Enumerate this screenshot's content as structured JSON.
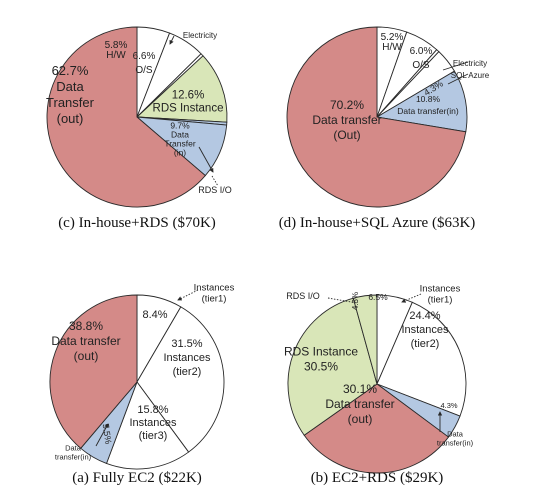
{
  "colors": {
    "pink": "#d48a88",
    "green": "#d9e6b8",
    "blue": "#b4c8e2",
    "white": "#ffffff",
    "stroke": "#2a2a2a"
  },
  "chart_data": [
    {
      "type": "pie",
      "caption": "(c) In-house+RDS ($70K)",
      "slices": [
        {
          "label": "H/W",
          "value": 5.8,
          "color": "white"
        },
        {
          "label": "O/S",
          "value": 6.6,
          "color": "white"
        },
        {
          "label": "Electricity",
          "value": 0.5,
          "color": "white"
        },
        {
          "label": "RDS Instance",
          "value": 12.6,
          "color": "green"
        },
        {
          "label": "RDS I/O",
          "value": 0.5,
          "color": "blue"
        },
        {
          "label": "Data Transfer (in)",
          "value": 9.7,
          "color": "blue"
        },
        {
          "label": "Data Transfer (out)",
          "value": 62.7,
          "color": "pink"
        }
      ],
      "labels": [
        {
          "id": "c-transfer-out",
          "lines": [
            "62.7%",
            "Data",
            "Transfer",
            "(out)"
          ]
        },
        {
          "id": "c-hw",
          "lines": [
            "5.8%",
            "H/W"
          ]
        },
        {
          "id": "c-os",
          "lines": [
            "6.6%",
            "O/S"
          ]
        },
        {
          "id": "c-electricity",
          "lines": [
            "Electricity"
          ]
        },
        {
          "id": "c-rds-instance",
          "lines": [
            "12.6%",
            "RDS Instance"
          ]
        },
        {
          "id": "c-transfer-in",
          "lines": [
            "9.7%",
            "Data",
            "Transfer",
            "(in)"
          ]
        },
        {
          "id": "c-rds-io",
          "lines": [
            "RDS I/O"
          ]
        }
      ]
    },
    {
      "type": "pie",
      "caption": "(d) In-house+SQL Azure ($63K)",
      "slices": [
        {
          "label": "H/W",
          "value": 5.2,
          "color": "white"
        },
        {
          "label": "O/S",
          "value": 6.0,
          "color": "white"
        },
        {
          "label": "Electricity",
          "value": 0.5,
          "color": "white"
        },
        {
          "label": "SQL Azure",
          "value": 4.3,
          "color": "white"
        },
        {
          "label": "Data transfer (in)",
          "value": 10.8,
          "color": "blue"
        },
        {
          "label": "Data transfer (Out)",
          "value": 70.2,
          "color": "pink"
        }
      ],
      "labels": [
        {
          "id": "d-hw",
          "lines": [
            "5.2%",
            "H/W"
          ]
        },
        {
          "id": "d-os",
          "lines": [
            "6.0%",
            "O/S"
          ]
        },
        {
          "id": "d-electricity",
          "lines": [
            "Electricity"
          ]
        },
        {
          "id": "d-sql-azure",
          "lines": [
            "SQL Azure"
          ]
        },
        {
          "id": "d-sql-pct",
          "lines": [
            "4.3%"
          ]
        },
        {
          "id": "d-transfer-in",
          "lines": [
            "10.8%",
            "Data transfer(in)"
          ]
        },
        {
          "id": "d-transfer-out",
          "lines": [
            "70.2%",
            "Data transfer",
            "(Out)"
          ]
        }
      ]
    },
    {
      "type": "pie",
      "caption": "(a) Fully EC2 ($22K)",
      "slices": [
        {
          "label": "Instances (tier1)",
          "value": 8.4,
          "color": "white"
        },
        {
          "label": "Instances (tier2)",
          "value": 31.5,
          "color": "white"
        },
        {
          "label": "Instances (tier3)",
          "value": 15.8,
          "color": "white"
        },
        {
          "label": "Data transfer(in)",
          "value": 5.5,
          "color": "blue"
        },
        {
          "label": "Data transfer (out)",
          "value": 38.8,
          "color": "pink"
        }
      ],
      "labels": [
        {
          "id": "a-tier1-name",
          "lines": [
            "Instances",
            "(tier1)"
          ]
        },
        {
          "id": "a-tier1-pct",
          "lines": [
            "8.4%"
          ]
        },
        {
          "id": "a-tier2",
          "lines": [
            "31.5%",
            "Instances",
            "(tier2)"
          ]
        },
        {
          "id": "a-tier3",
          "lines": [
            "15.8%",
            "Instances",
            "(tier3)"
          ]
        },
        {
          "id": "a-in-pct",
          "lines": [
            "5.5%"
          ]
        },
        {
          "id": "a-in-name",
          "lines": [
            "Data",
            "transfer(in)"
          ]
        },
        {
          "id": "a-transfer-out",
          "lines": [
            "38.8%",
            "Data transfer",
            "(out)"
          ]
        }
      ]
    },
    {
      "type": "pie",
      "caption": "(b) EC2+RDS ($29K)",
      "slices": [
        {
          "label": "Instances (tier1)",
          "value": 6.5,
          "color": "white"
        },
        {
          "label": "Instances (tier2)",
          "value": 24.4,
          "color": "white"
        },
        {
          "label": "Data transfer(in)",
          "value": 4.3,
          "color": "blue"
        },
        {
          "label": "Data transfer (out)",
          "value": 30.1,
          "color": "pink"
        },
        {
          "label": "RDS Instance",
          "value": 30.5,
          "color": "green"
        },
        {
          "label": "RDS I/O",
          "value": 4.3,
          "color": "green"
        }
      ],
      "labels": [
        {
          "id": "b-tier1-name",
          "lines": [
            "Instances",
            "(tier1)"
          ]
        },
        {
          "id": "b-tier1-pct",
          "lines": [
            "6.5%"
          ]
        },
        {
          "id": "b-tier2",
          "lines": [
            "24.4%",
            "Instances",
            "(tier2)"
          ]
        },
        {
          "id": "b-in-pct",
          "lines": [
            "4.3%"
          ]
        },
        {
          "id": "b-in-name",
          "lines": [
            "Data",
            "transfer(in)"
          ]
        },
        {
          "id": "b-transfer-out",
          "lines": [
            "30.1%",
            "Data transfer",
            "(out)"
          ]
        },
        {
          "id": "b-rds-instance",
          "lines": [
            "RDS Instance",
            "30.5%"
          ]
        },
        {
          "id": "b-rdsio-name",
          "lines": [
            "RDS I/O"
          ]
        },
        {
          "id": "b-rdsio-pct",
          "lines": [
            "4.3%"
          ]
        }
      ]
    }
  ]
}
